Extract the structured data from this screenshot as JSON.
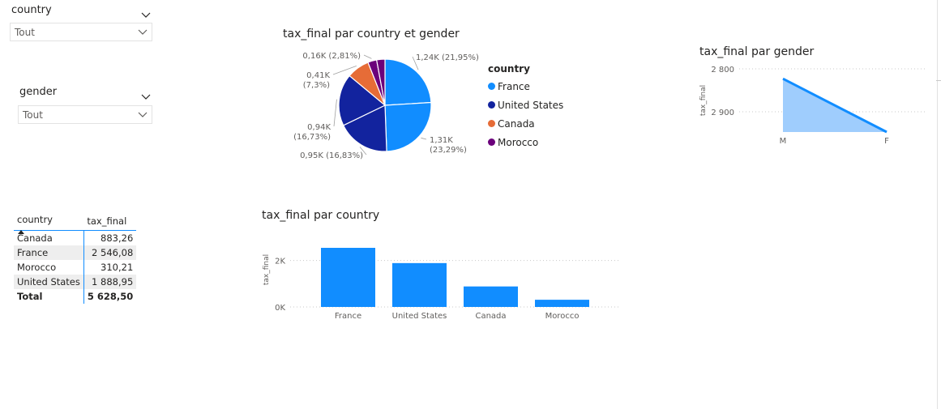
{
  "slicers": {
    "country": {
      "title": "country",
      "value": "Tout"
    },
    "gender": {
      "title": "gender",
      "value": "Tout"
    }
  },
  "table": {
    "headers": [
      "country",
      "tax_final"
    ],
    "rows": [
      {
        "country": "Canada",
        "value": "883,26"
      },
      {
        "country": "France",
        "value": "2 546,08"
      },
      {
        "country": "Morocco",
        "value": "310,21"
      },
      {
        "country": "United States",
        "value": "1 888,95"
      }
    ],
    "total": {
      "label": "Total",
      "value": "5 628,50"
    }
  },
  "pie_title": "tax_final par country et gender",
  "legend_title": "country",
  "bar_title": "tax_final par country",
  "area_title": "tax_final par gender",
  "colors": {
    "france": "#118dff",
    "united_states": "#12239e",
    "canada": "#e66c37",
    "morocco": "#6b007b",
    "accent": "#118dff"
  },
  "chart_data": [
    {
      "type": "pie",
      "title": "tax_final par country et gender",
      "legend_title": "country",
      "legend": [
        "France",
        "United States",
        "Canada",
        "Morocco"
      ],
      "slices": [
        {
          "country": "France",
          "value": 1.24,
          "label": "1,24K (21,95%)"
        },
        {
          "country": "France",
          "value": 1.31,
          "label": "1,31K\n(23,29%)"
        },
        {
          "country": "United States",
          "value": 0.95,
          "label": "0,95K (16,83%)"
        },
        {
          "country": "United States",
          "value": 0.94,
          "label": "0,94K\n(16,73%)"
        },
        {
          "country": "Canada",
          "value": 0.41,
          "label": "0,41K\n(7,3%)"
        },
        {
          "country": "Morocco",
          "value": 0.16,
          "label": "0,16K (2,81%)"
        },
        {
          "country": "Morocco",
          "value": 0.15,
          "label": ""
        }
      ]
    },
    {
      "type": "bar",
      "title": "tax_final par country",
      "ylabel": "tax_final",
      "categories": [
        "France",
        "United States",
        "Canada",
        "Morocco"
      ],
      "values": [
        2546.08,
        1888.95,
        883.26,
        310.21
      ],
      "yticks": [
        "0K",
        "2K"
      ],
      "ylim": [
        0,
        3000
      ]
    },
    {
      "type": "area",
      "title": "tax_final par gender",
      "ylabel": "tax_final",
      "categories": [
        "M",
        "F"
      ],
      "values": [
        2877,
        2753
      ],
      "yticks": [
        "2 800",
        "2 900"
      ],
      "ylim": [
        2753,
        2900
      ]
    }
  ]
}
